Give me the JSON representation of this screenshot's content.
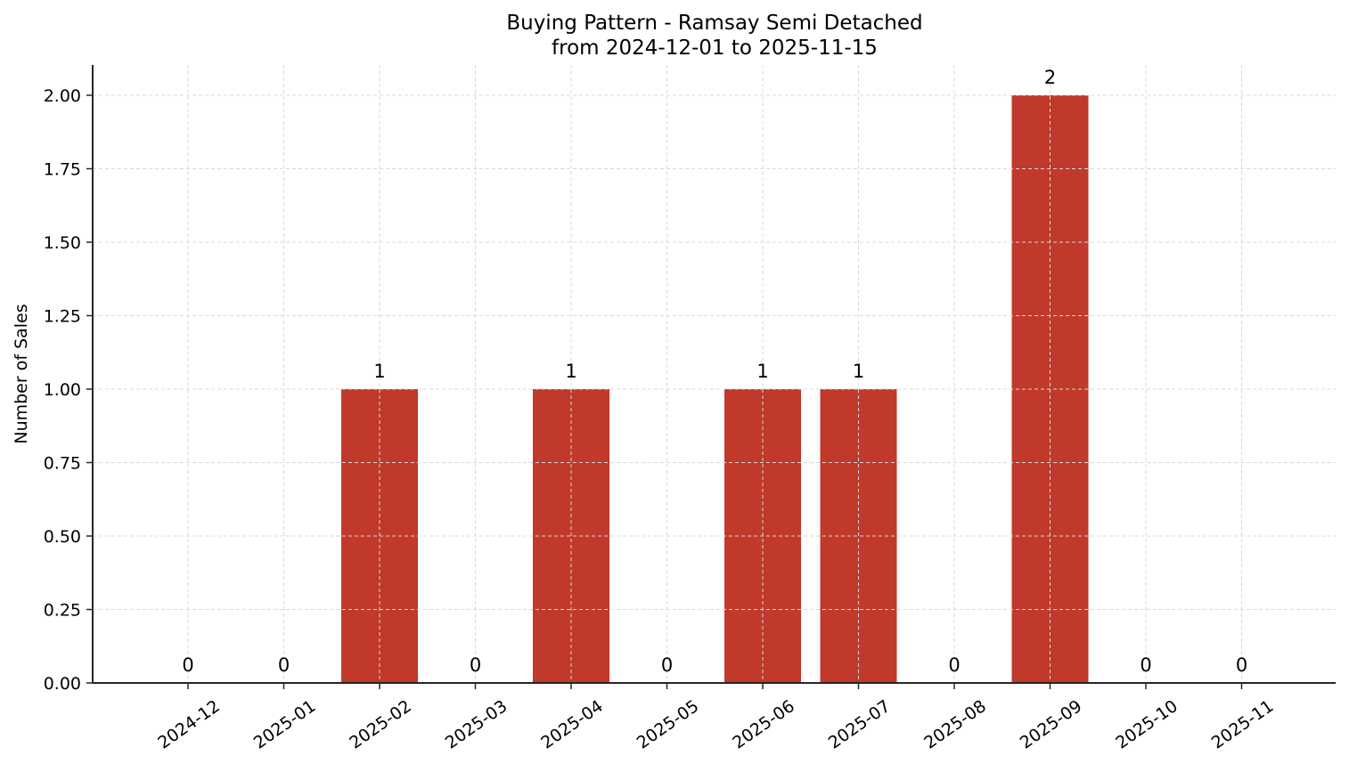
{
  "chart_data": {
    "type": "bar",
    "title": "Buying Pattern - Ramsay Semi Detached",
    "subtitle": "from 2024-12-01 to 2025-11-15",
    "xlabel": "",
    "ylabel": "Number of Sales",
    "categories": [
      "2024-12",
      "2025-01",
      "2025-02",
      "2025-03",
      "2025-04",
      "2025-05",
      "2025-06",
      "2025-07",
      "2025-08",
      "2025-09",
      "2025-10",
      "2025-11"
    ],
    "values": [
      0,
      0,
      1,
      0,
      1,
      0,
      1,
      1,
      0,
      2,
      0,
      0
    ],
    "data_labels": [
      "0",
      "0",
      "1",
      "0",
      "1",
      "0",
      "1",
      "1",
      "0",
      "2",
      "0",
      "0"
    ],
    "ylim": [
      0,
      2.1
    ],
    "yticks": [
      0.0,
      0.25,
      0.5,
      0.75,
      1.0,
      1.25,
      1.5,
      1.75,
      2.0
    ],
    "ytick_labels": [
      "0.00",
      "0.25",
      "0.50",
      "0.75",
      "1.00",
      "1.25",
      "1.50",
      "1.75",
      "2.00"
    ],
    "grid": true,
    "legend": null,
    "bar_color": "#c0392b"
  }
}
